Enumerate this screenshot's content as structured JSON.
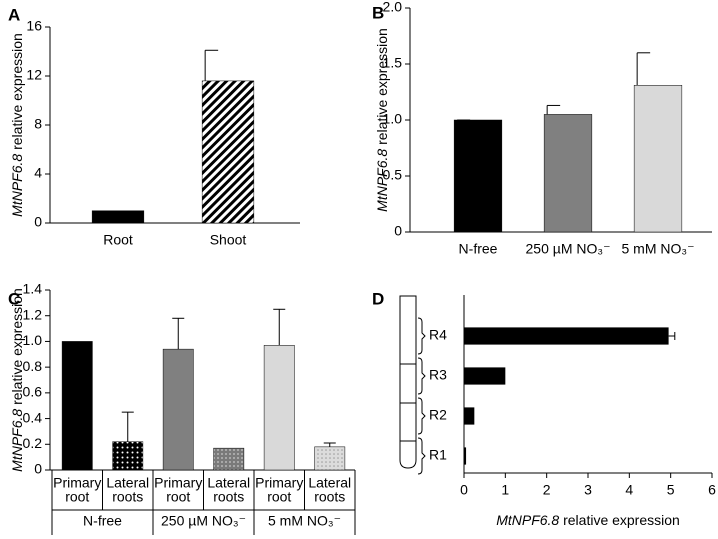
{
  "chart_data": [
    {
      "type": "bar",
      "panel": "A",
      "ylabel_gene": "MtNPF6.8",
      "ylabel": "relative expression",
      "categories": [
        "Root",
        "Shoot"
      ],
      "values": [
        1.0,
        11.6
      ],
      "errors": [
        null,
        2.5
      ],
      "fills": [
        "#000000",
        "hatch"
      ],
      "ylim": [
        0,
        16
      ],
      "yticks": [
        0,
        4,
        8,
        12,
        16
      ]
    },
    {
      "type": "bar",
      "panel": "B",
      "ylabel_gene": "MtNPF6.8",
      "ylabel": "relative expression",
      "categories": [
        "N-free",
        "250 µM NO₃⁻",
        "5 mM NO₃⁻"
      ],
      "values": [
        1.0,
        1.05,
        1.31
      ],
      "errors": [
        0,
        0.08,
        0.29
      ],
      "fills": [
        "#000000",
        "#808080",
        "#d9d9d9"
      ],
      "ylim": [
        0,
        2
      ],
      "yticks": [
        0,
        0.5,
        {
          "value": 1,
          "label": "1.0"
        },
        1.5,
        {
          "value": 2,
          "label": "2.0"
        }
      ]
    },
    {
      "type": "bar",
      "panel": "C",
      "ylabel_gene": "MtNPF6.8",
      "ylabel": "relative expression",
      "groups": [
        "N-free",
        "250 µM NO₃⁻",
        "5 mM NO₃⁻"
      ],
      "categories": [
        [
          "Primary",
          "root"
        ],
        [
          "Lateral",
          "roots"
        ],
        [
          "Primary",
          "root"
        ],
        [
          "Lateral",
          "roots"
        ],
        [
          "Primary",
          "root"
        ],
        [
          "Lateral",
          "roots"
        ]
      ],
      "values": [
        1.0,
        0.22,
        0.94,
        0.17,
        0.97,
        0.18
      ],
      "errors": [
        null,
        0.23,
        0.24,
        null,
        0.28,
        0.03
      ],
      "fills": [
        "#000000",
        "dots-black",
        "#808080",
        "dots-gray",
        "#d9d9d9",
        "dots-light"
      ],
      "ylim": [
        0,
        1.4
      ],
      "yticks": [
        0,
        0.2,
        0.4,
        0.6,
        0.8,
        {
          "value": 1,
          "label": "1.0"
        },
        1.2,
        1.4
      ]
    },
    {
      "type": "barh",
      "panel": "D",
      "xlabel_gene": "MtNPF6.8",
      "xlabel": "relative expression",
      "categories": [
        "R1",
        "R2",
        "R3",
        "R4"
      ],
      "values": [
        0.05,
        0.25,
        1.0,
        4.95
      ],
      "errors": [
        null,
        null,
        null,
        0.15
      ],
      "fills": [
        "#000000",
        "#000000",
        "#000000",
        "#000000"
      ],
      "xlim": [
        0,
        6
      ],
      "xticks": [
        0,
        1,
        2,
        3,
        4,
        5,
        6
      ]
    }
  ]
}
